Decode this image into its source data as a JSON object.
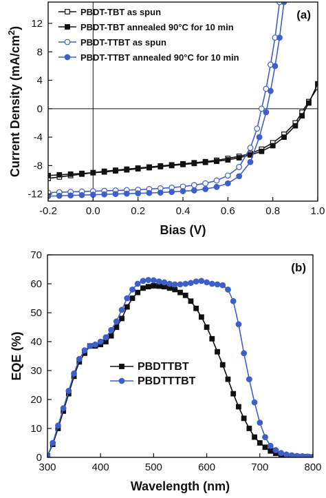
{
  "chart_data": [
    {
      "type": "line",
      "panel_label": "(a)",
      "xlabel": "Bias (V)",
      "ylabel": "Current Density (mA/cm2)",
      "ylabel_main": "Current Density (mA/cm",
      "ylabel_sup": "2",
      "ylabel_end": ")",
      "xlim": [
        -0.2,
        1.0
      ],
      "ylim": [
        -13,
        15
      ],
      "xticks": [
        -0.2,
        0.0,
        0.2,
        0.4,
        0.6,
        0.8,
        1.0
      ],
      "xtick_labels": [
        "-0.2",
        "0.0",
        "0.2",
        "0.4",
        "0.6",
        "0.8",
        "1.0"
      ],
      "yticks": [
        -12,
        -8,
        -4,
        0,
        4,
        8,
        12
      ],
      "ytick_labels": [
        "-12",
        "-8",
        "-4",
        "0",
        "4",
        "8",
        "12"
      ],
      "legend_position": "top-left",
      "series": [
        {
          "name": "PBDT-TBT as spun",
          "color": "#111111",
          "marker": "square-open",
          "x": [
            -0.2,
            -0.15,
            -0.1,
            -0.05,
            0.0,
            0.05,
            0.1,
            0.15,
            0.2,
            0.25,
            0.3,
            0.35,
            0.4,
            0.45,
            0.5,
            0.55,
            0.6,
            0.65,
            0.7,
            0.75,
            0.8,
            0.85,
            0.9,
            0.93,
            0.96,
            1.0
          ],
          "y": [
            -9.8,
            -9.6,
            -9.4,
            -9.2,
            -9.0,
            -8.8,
            -8.65,
            -8.5,
            -8.35,
            -8.2,
            -8.05,
            -7.9,
            -7.75,
            -7.6,
            -7.45,
            -7.25,
            -7.0,
            -6.7,
            -6.3,
            -5.7,
            -4.8,
            -3.6,
            -2.0,
            -0.5,
            1.0,
            3.0
          ]
        },
        {
          "name": "PBDT-TBT annealed 90°C for 10 min",
          "color": "#111111",
          "marker": "square-filled",
          "x": [
            -0.2,
            -0.15,
            -0.1,
            -0.05,
            0.0,
            0.05,
            0.1,
            0.15,
            0.2,
            0.25,
            0.3,
            0.35,
            0.4,
            0.45,
            0.5,
            0.55,
            0.6,
            0.65,
            0.7,
            0.75,
            0.8,
            0.85,
            0.9,
            0.93,
            0.96,
            1.0
          ],
          "y": [
            -9.4,
            -9.3,
            -9.2,
            -9.1,
            -9.0,
            -8.9,
            -8.75,
            -8.6,
            -8.45,
            -8.3,
            -8.15,
            -8.0,
            -7.85,
            -7.7,
            -7.55,
            -7.4,
            -7.2,
            -6.9,
            -6.5,
            -6.0,
            -5.2,
            -4.0,
            -2.4,
            -1.0,
            0.8,
            3.5
          ]
        },
        {
          "name": "PBDT-TTBT as spun",
          "color": "#3f5fc8",
          "marker": "circle-open",
          "x": [
            -0.2,
            -0.15,
            -0.1,
            -0.05,
            0.0,
            0.05,
            0.1,
            0.15,
            0.2,
            0.25,
            0.3,
            0.35,
            0.4,
            0.45,
            0.5,
            0.55,
            0.6,
            0.65,
            0.7,
            0.73,
            0.75,
            0.77,
            0.79,
            0.81,
            0.83
          ],
          "y": [
            -11.8,
            -11.75,
            -11.7,
            -11.65,
            -11.6,
            -11.55,
            -11.5,
            -11.45,
            -11.4,
            -11.3,
            -11.2,
            -11.1,
            -10.95,
            -10.75,
            -10.5,
            -10.1,
            -9.4,
            -8.2,
            -5.5,
            -2.8,
            0.0,
            2.8,
            6.2,
            10.0,
            15.0
          ]
        },
        {
          "name": "PBDT-TTBT annealed 90°C for 10 min",
          "color": "#3f5fc8",
          "marker": "circle-filled",
          "x": [
            -0.2,
            -0.15,
            -0.1,
            -0.05,
            0.0,
            0.05,
            0.1,
            0.15,
            0.2,
            0.25,
            0.3,
            0.35,
            0.4,
            0.45,
            0.5,
            0.55,
            0.6,
            0.65,
            0.7,
            0.74,
            0.77,
            0.79,
            0.81,
            0.83,
            0.85
          ],
          "y": [
            -12.3,
            -12.25,
            -12.2,
            -12.15,
            -12.1,
            -12.05,
            -12.0,
            -11.95,
            -11.9,
            -11.85,
            -11.8,
            -11.7,
            -11.6,
            -11.5,
            -11.3,
            -11.0,
            -10.5,
            -9.5,
            -7.5,
            -4.0,
            -0.5,
            2.5,
            6.0,
            10.0,
            15.0
          ]
        }
      ]
    },
    {
      "type": "line",
      "panel_label": "(b)",
      "xlabel": "Wavelength (nm)",
      "ylabel": "EQE (%)",
      "xlim": [
        300,
        800
      ],
      "ylim": [
        0,
        70
      ],
      "xticks": [
        300,
        400,
        500,
        600,
        700,
        800
      ],
      "xtick_labels": [
        "300",
        "400",
        "500",
        "600",
        "700",
        "800"
      ],
      "yticks": [
        0,
        10,
        20,
        30,
        40,
        50,
        60,
        70
      ],
      "ytick_labels": [
        "0",
        "10",
        "20",
        "30",
        "40",
        "50",
        "60",
        "70"
      ],
      "legend_position": "center",
      "series": [
        {
          "name": "PBDTTBT",
          "color": "#111111",
          "marker": "square-filled",
          "x": [
            300,
            310,
            320,
            330,
            340,
            350,
            360,
            370,
            380,
            390,
            400,
            410,
            420,
            430,
            440,
            450,
            460,
            470,
            480,
            490,
            500,
            510,
            520,
            530,
            540,
            550,
            560,
            570,
            580,
            590,
            600,
            610,
            620,
            630,
            640,
            650,
            660,
            670,
            680,
            690,
            700,
            710,
            720,
            730,
            740,
            750,
            760,
            770,
            780,
            790,
            800
          ],
          "y": [
            0.5,
            4.5,
            10,
            16,
            22,
            28,
            33,
            36,
            38.5,
            38.5,
            39,
            40,
            42,
            45,
            48,
            52,
            55,
            57,
            58.5,
            59,
            59.3,
            59.2,
            59,
            58.5,
            58,
            57,
            56,
            54,
            51.5,
            48.5,
            45,
            41,
            36.5,
            32,
            27,
            22,
            17.5,
            13.5,
            10,
            7,
            5,
            3.5,
            2.2,
            1.4,
            0.9,
            0.6,
            0.4,
            0.3,
            0.2,
            0.2,
            0.1
          ]
        },
        {
          "name": "PBDTTTBT",
          "color": "#3f5fc8",
          "marker": "circle-filled",
          "x": [
            300,
            310,
            320,
            330,
            340,
            350,
            360,
            370,
            380,
            390,
            400,
            410,
            420,
            430,
            440,
            450,
            460,
            470,
            480,
            490,
            500,
            510,
            520,
            530,
            540,
            550,
            560,
            570,
            580,
            590,
            600,
            610,
            620,
            630,
            640,
            650,
            660,
            670,
            680,
            690,
            700,
            710,
            720,
            730,
            740,
            750,
            760,
            770,
            780,
            790,
            800
          ],
          "y": [
            0.5,
            5,
            11,
            17,
            23,
            29,
            34,
            37,
            38.5,
            39,
            40,
            41.5,
            44,
            47,
            51,
            55,
            58,
            60,
            61,
            61.3,
            61.2,
            60.8,
            60.5,
            60,
            59.8,
            59.8,
            60,
            60.3,
            60.8,
            61,
            60.5,
            60,
            59.8,
            59.5,
            58,
            54,
            46,
            36,
            27,
            19,
            12,
            7,
            4,
            2.5,
            1.5,
            1,
            0.7,
            0.5,
            0.4,
            0.3,
            0.2
          ]
        }
      ]
    }
  ]
}
